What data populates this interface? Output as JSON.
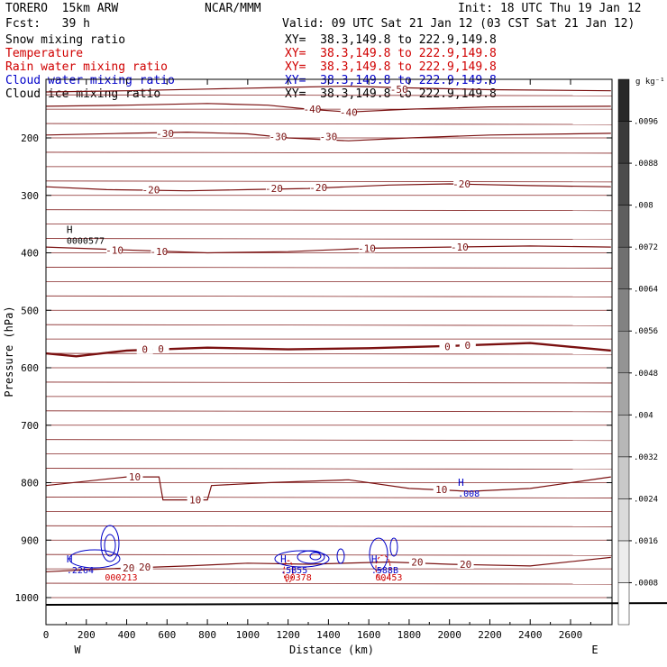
{
  "header": {
    "model": "TORERO  15km ARW",
    "center": "NCAR/MMM",
    "init": "Init: 18 UTC Thu 19 Jan 12",
    "fcst": "Fcst:   39 h",
    "valid": "Valid: 09 UTC Sat 21 Jan 12 (03 CST Sat 21 Jan 12)"
  },
  "fields": [
    {
      "name": "Snow mixing ratio",
      "xy": "XY=  38.3,149.8 to 222.9,149.8",
      "color": "#000000"
    },
    {
      "name": "Temperature",
      "xy": "XY=  38.3,149.8 to 222.9,149.8",
      "color": "#d00000"
    },
    {
      "name": "Rain water mixing ratio",
      "xy": "XY=  38.3,149.8 to 222.9,149.8",
      "color": "#d00000"
    },
    {
      "name": "Cloud water mixing ratio",
      "xy": "XY=  38.3,149.8 to 222.9,149.8",
      "color": "#0000c8"
    },
    {
      "name": "Cloud ice mixing ratio",
      "xy": "XY=  38.3,149.8 to 222.9,149.8",
      "color": "#000000"
    }
  ],
  "chart_data": {
    "type": "contour",
    "xlabel": "Distance (km)",
    "ylabel": "Pressure (hPa)",
    "x_ticks": [
      0,
      200,
      400,
      600,
      800,
      1000,
      1200,
      1400,
      1600,
      1800,
      2000,
      2200,
      2400,
      2600
    ],
    "y_ticks": [
      200,
      300,
      400,
      500,
      600,
      700,
      800,
      900,
      1000
    ],
    "xlim": [
      0,
      2800
    ],
    "ylim_pressure": [
      1050,
      100
    ],
    "west_label": "W",
    "east_label": "E",
    "colorbar": {
      "units": "g kg⁻¹",
      "ticks": [
        ".0008",
        ".0016",
        ".0024",
        ".0032",
        ".004",
        ".0048",
        ".0056",
        ".0064",
        ".0072",
        ".008",
        ".0088",
        ".0096"
      ]
    },
    "temperature_contours": [
      {
        "value": -50,
        "points": [
          [
            0,
            120
          ],
          [
            400,
            118
          ],
          [
            800,
            115
          ],
          [
            1200,
            112
          ],
          [
            1500,
            110
          ],
          [
            1800,
            113
          ],
          [
            2200,
            116
          ],
          [
            2800,
            118
          ]
        ]
      },
      {
        "value": -40,
        "points": [
          [
            0,
            145
          ],
          [
            400,
            143
          ],
          [
            800,
            140
          ],
          [
            1100,
            143
          ],
          [
            1300,
            150
          ],
          [
            1500,
            155
          ],
          [
            1800,
            150
          ],
          [
            2200,
            146
          ],
          [
            2800,
            145
          ]
        ]
      },
      {
        "value": -30,
        "points": [
          [
            0,
            195
          ],
          [
            400,
            192
          ],
          [
            700,
            190
          ],
          [
            1000,
            193
          ],
          [
            1200,
            200
          ],
          [
            1500,
            205
          ],
          [
            1800,
            200
          ],
          [
            2200,
            195
          ],
          [
            2800,
            192
          ]
        ]
      },
      {
        "value": -20,
        "points": [
          [
            0,
            285
          ],
          [
            300,
            290
          ],
          [
            700,
            292
          ],
          [
            1000,
            290
          ],
          [
            1300,
            288
          ],
          [
            1700,
            282
          ],
          [
            2000,
            280
          ],
          [
            2400,
            283
          ],
          [
            2800,
            285
          ]
        ]
      },
      {
        "value": -10,
        "points": [
          [
            0,
            390
          ],
          [
            400,
            395
          ],
          [
            800,
            400
          ],
          [
            1200,
            398
          ],
          [
            1600,
            392
          ],
          [
            2000,
            390
          ],
          [
            2400,
            388
          ],
          [
            2800,
            390
          ]
        ]
      },
      {
        "value": 0,
        "points": [
          [
            0,
            575
          ],
          [
            150,
            580
          ],
          [
            400,
            570
          ],
          [
            800,
            565
          ],
          [
            1200,
            568
          ],
          [
            1600,
            566
          ],
          [
            2000,
            562
          ],
          [
            2400,
            557
          ],
          [
            2800,
            570
          ]
        ]
      },
      {
        "value": 10,
        "points": [
          [
            0,
            805
          ],
          [
            400,
            790
          ],
          [
            560,
            790
          ],
          [
            580,
            830
          ],
          [
            800,
            830
          ],
          [
            820,
            805
          ],
          [
            1100,
            800
          ],
          [
            1500,
            795
          ],
          [
            1800,
            810
          ],
          [
            2100,
            815
          ],
          [
            2400,
            810
          ],
          [
            2800,
            790
          ]
        ]
      },
      {
        "value": 20,
        "points": [
          [
            0,
            955
          ],
          [
            300,
            950
          ],
          [
            700,
            945
          ],
          [
            1000,
            940
          ],
          [
            1300,
            942
          ],
          [
            1700,
            938
          ],
          [
            2000,
            942
          ],
          [
            2400,
            945
          ],
          [
            2800,
            930
          ]
        ]
      }
    ],
    "contour_labels": [
      {
        "text": "-50",
        "x": 1750,
        "y": 115
      },
      {
        "text": "-40",
        "x": 1320,
        "y": 150
      },
      {
        "text": "-40",
        "x": 1500,
        "y": 155
      },
      {
        "text": "-30",
        "x": 590,
        "y": 192
      },
      {
        "text": "-30",
        "x": 1150,
        "y": 198
      },
      {
        "text": "-30",
        "x": 1400,
        "y": 198
      },
      {
        "text": "-20",
        "x": 520,
        "y": 290
      },
      {
        "text": "-20",
        "x": 1130,
        "y": 288
      },
      {
        "text": "-20",
        "x": 1350,
        "y": 286
      },
      {
        "text": "-20",
        "x": 2060,
        "y": 280
      },
      {
        "text": "-10",
        "x": 340,
        "y": 395
      },
      {
        "text": "-10",
        "x": 560,
        "y": 398
      },
      {
        "text": "-10",
        "x": 1590,
        "y": 392
      },
      {
        "text": "-10",
        "x": 2050,
        "y": 390
      },
      {
        "text": "0",
        "x": 490,
        "y": 568
      },
      {
        "text": "0",
        "x": 570,
        "y": 567
      },
      {
        "text": "0",
        "x": 1990,
        "y": 563
      },
      {
        "text": "0",
        "x": 2090,
        "y": 561
      },
      {
        "text": "10",
        "x": 440,
        "y": 790
      },
      {
        "text": "10",
        "x": 740,
        "y": 830
      },
      {
        "text": "10",
        "x": 1960,
        "y": 812
      },
      {
        "text": "20",
        "x": 410,
        "y": 948
      },
      {
        "text": "20",
        "x": 490,
        "y": 947
      },
      {
        "text": "20",
        "x": 1840,
        "y": 938
      },
      {
        "text": "20",
        "x": 2080,
        "y": 942
      }
    ],
    "markers": [
      {
        "text": "H",
        "sub": "0000577",
        "x": 120,
        "y": 372,
        "color": "#000000"
      },
      {
        "text": "H",
        "sub": ".008",
        "x": 2060,
        "y": 812,
        "color": "#0000c8"
      },
      {
        "text": "H",
        "sub": ".2264",
        "x": 120,
        "y": 945,
        "color": "#0000c8"
      },
      {
        "text": "H",
        "sub": ".5B55",
        "x": 1180,
        "y": 945,
        "color": "#0000c8"
      },
      {
        "text": "H",
        "sub": ".588B",
        "x": 1630,
        "y": 945,
        "color": "#0000c8"
      },
      {
        "text": "",
        "sub": "000213",
        "x": 310,
        "y": 958,
        "color": "#d00000"
      },
      {
        "text": "",
        "sub": "00378",
        "x": 1200,
        "y": 958,
        "color": "#d00000"
      },
      {
        "text": "",
        "sub": "00453",
        "x": 1650,
        "y": 958,
        "color": "#d00000"
      }
    ]
  }
}
